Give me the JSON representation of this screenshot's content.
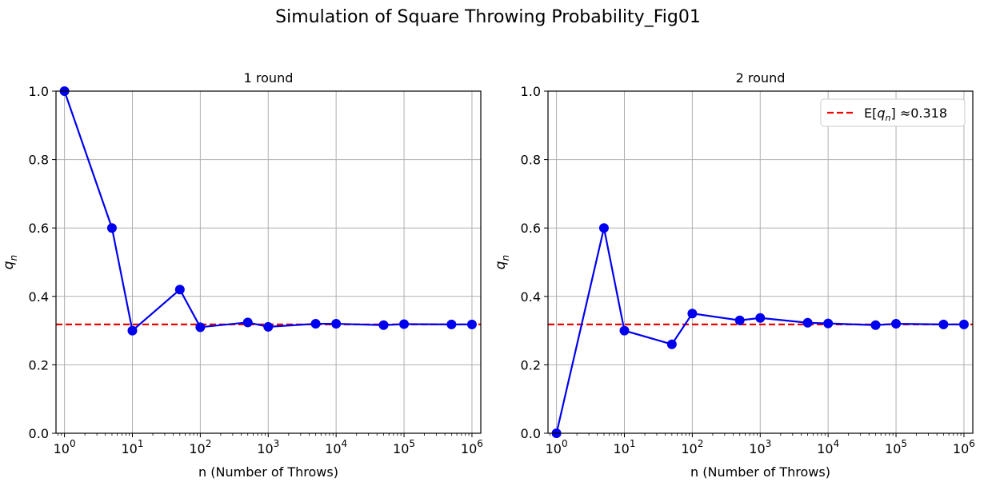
{
  "figure": {
    "suptitle": "Simulation of Square Throwing Probability_Fig01"
  },
  "chart_data": [
    {
      "type": "line",
      "title": "1 round",
      "xlabel": "n (Number of Throws)",
      "ylabel_base": "q",
      "ylabel_sub": "n",
      "xscale": "log",
      "xlim": [
        0.75,
        1350000.0
      ],
      "ylim": [
        0,
        1
      ],
      "xticks": [
        1,
        10,
        100,
        1000,
        10000,
        100000,
        1000000
      ],
      "xtick_labels": [
        {
          "base": "10",
          "exp": "0"
        },
        {
          "base": "10",
          "exp": "1"
        },
        {
          "base": "10",
          "exp": "2"
        },
        {
          "base": "10",
          "exp": "3"
        },
        {
          "base": "10",
          "exp": "4"
        },
        {
          "base": "10",
          "exp": "5"
        },
        {
          "base": "10",
          "exp": "6"
        }
      ],
      "yticks": [
        0,
        0.2,
        0.4,
        0.6,
        0.8,
        1.0
      ],
      "ytick_labels": [
        "0.0",
        "0.2",
        "0.4",
        "0.6",
        "0.8",
        "1.0"
      ],
      "grid": true,
      "series": [
        {
          "color": "#0000ee",
          "marker": "circle",
          "x": [
            1,
            5,
            10,
            50,
            100,
            500,
            1000,
            5000,
            10000,
            50000,
            100000,
            500000,
            1000000
          ],
          "y": [
            1.0,
            0.6,
            0.3,
            0.42,
            0.31,
            0.324,
            0.311,
            0.32,
            0.32,
            0.316,
            0.319,
            0.318,
            0.318
          ]
        }
      ],
      "hline": {
        "y": 0.318,
        "color": "#ee0000",
        "style": "dashed"
      },
      "legend": null
    },
    {
      "type": "line",
      "title": "2 round",
      "xlabel": "n (Number of Throws)",
      "ylabel_base": "q",
      "ylabel_sub": "n",
      "xscale": "log",
      "xlim": [
        0.75,
        1350000.0
      ],
      "ylim": [
        0,
        1
      ],
      "xticks": [
        1,
        10,
        100,
        1000,
        10000,
        100000,
        1000000
      ],
      "xtick_labels": [
        {
          "base": "10",
          "exp": "0"
        },
        {
          "base": "10",
          "exp": "1"
        },
        {
          "base": "10",
          "exp": "2"
        },
        {
          "base": "10",
          "exp": "3"
        },
        {
          "base": "10",
          "exp": "4"
        },
        {
          "base": "10",
          "exp": "5"
        },
        {
          "base": "10",
          "exp": "6"
        }
      ],
      "yticks": [
        0,
        0.2,
        0.4,
        0.6,
        0.8,
        1.0
      ],
      "ytick_labels": [
        "0.0",
        "0.2",
        "0.4",
        "0.6",
        "0.8",
        "1.0"
      ],
      "grid": true,
      "series": [
        {
          "color": "#0000ee",
          "marker": "circle",
          "x": [
            1,
            5,
            10,
            50,
            100,
            500,
            1000,
            5000,
            10000,
            50000,
            100000,
            500000,
            1000000
          ],
          "y": [
            0.0,
            0.6,
            0.3,
            0.26,
            0.35,
            0.33,
            0.337,
            0.323,
            0.321,
            0.316,
            0.32,
            0.318,
            0.318
          ]
        }
      ],
      "hline": {
        "y": 0.318,
        "color": "#ee0000",
        "style": "dashed"
      },
      "legend": {
        "placement": "top-right",
        "entries": [
          {
            "prefix": "E[",
            "var": "q",
            "sub": "n",
            "suffix": "] ≈0.318",
            "color": "#ee0000",
            "style": "dashed"
          }
        ]
      }
    }
  ]
}
